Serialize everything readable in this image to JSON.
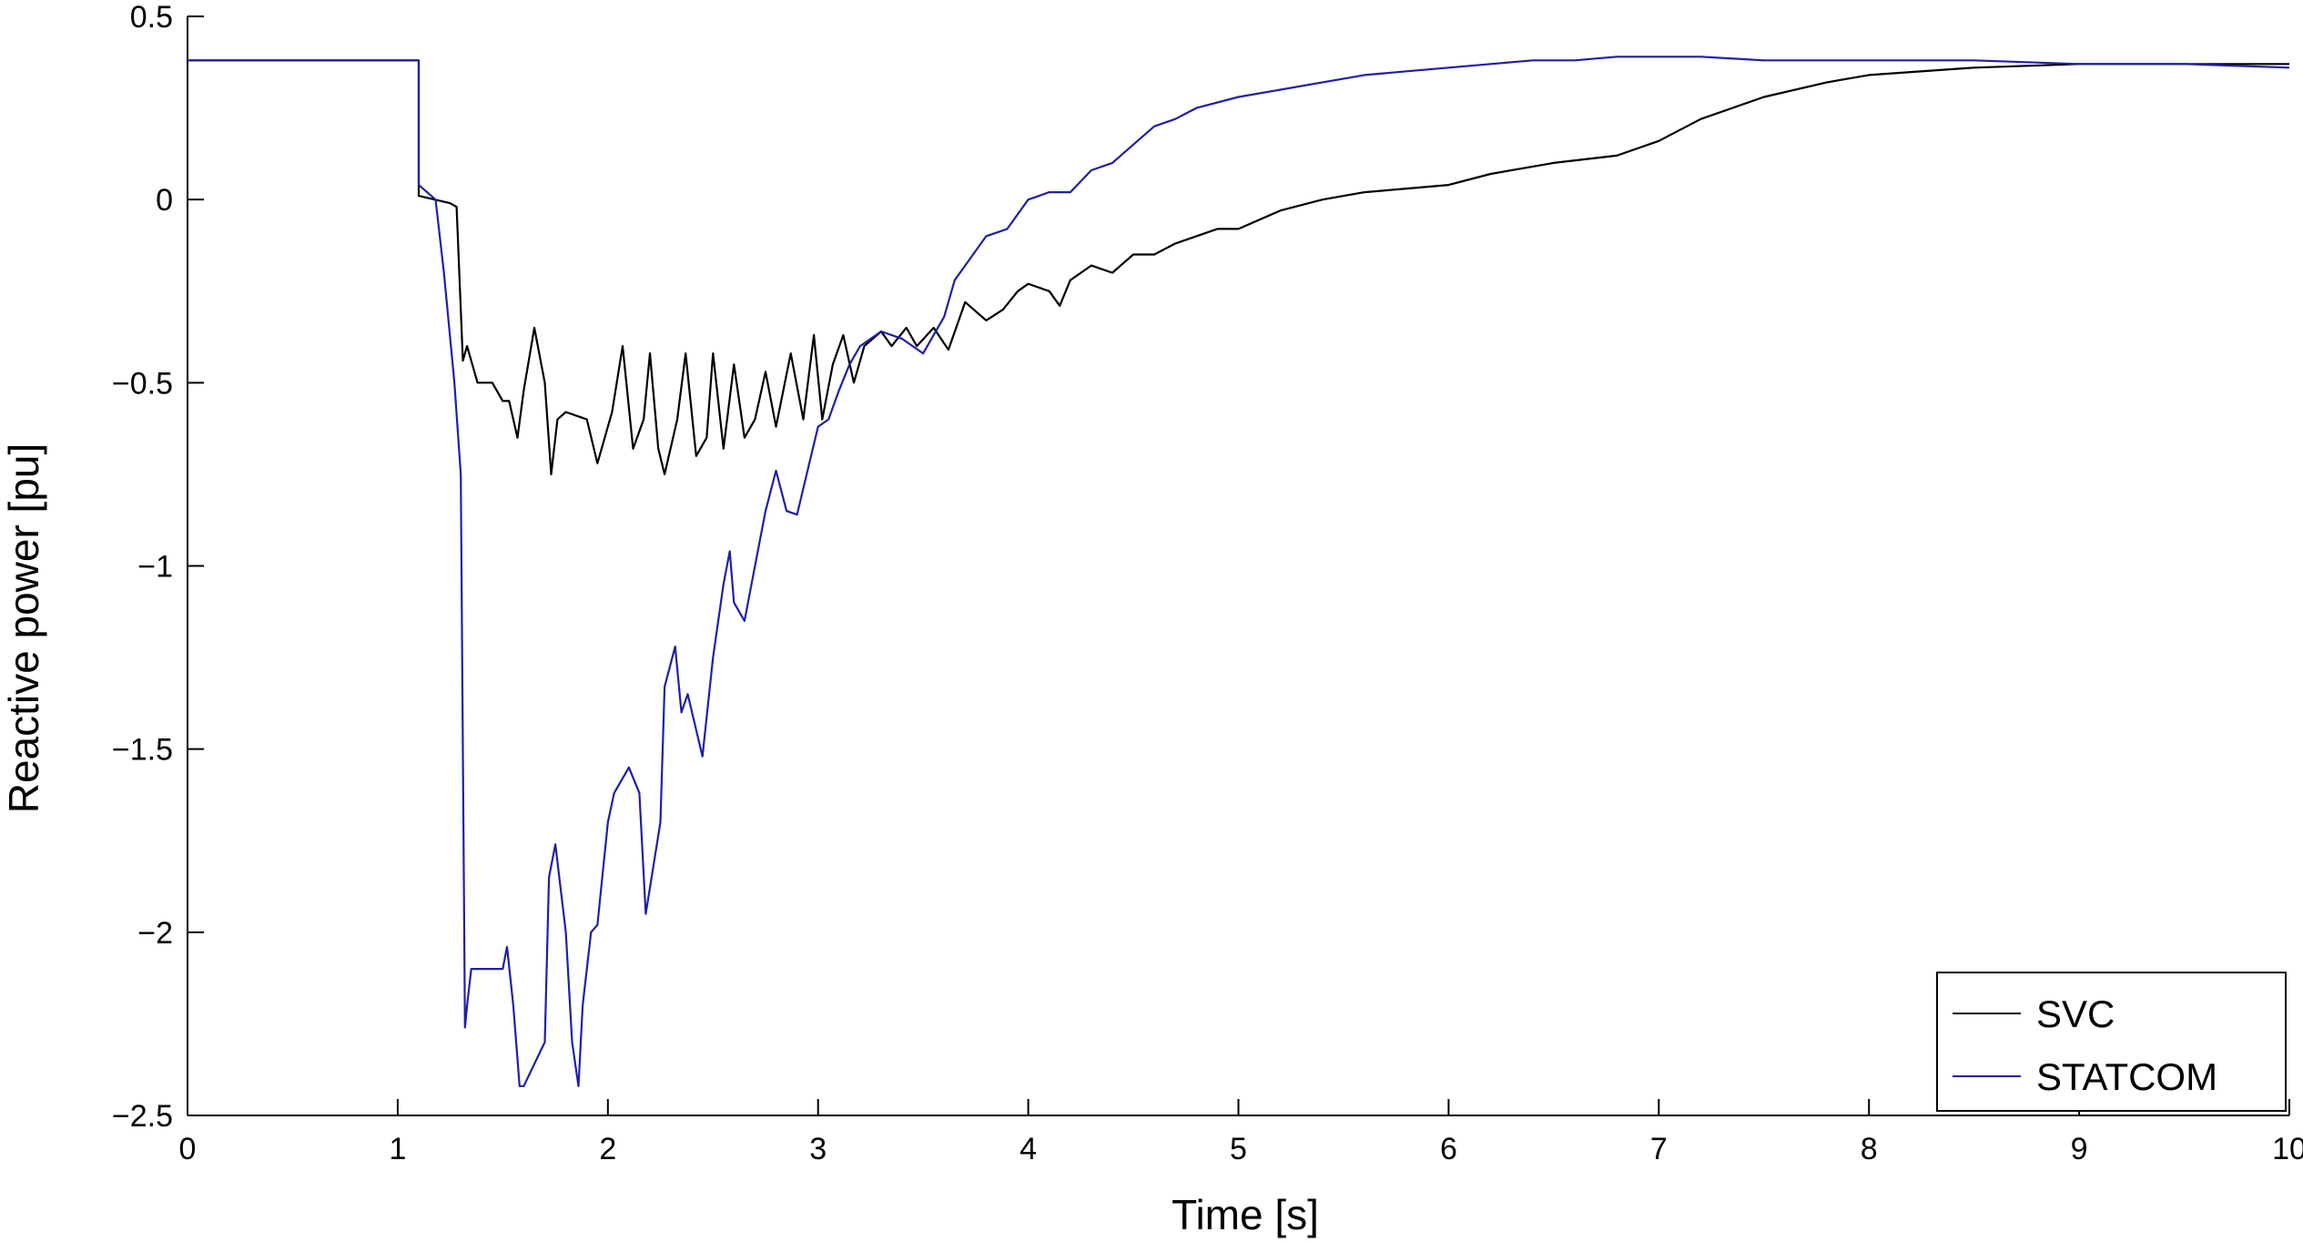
{
  "chart_data": {
    "type": "line",
    "title": "",
    "xlabel": "Time [s]",
    "ylabel": "Reactive power [pu]",
    "xlim": [
      0,
      10
    ],
    "ylim": [
      -2.5,
      0.5
    ],
    "xticks": [
      0,
      1,
      2,
      3,
      4,
      5,
      6,
      7,
      8,
      9,
      10
    ],
    "yticks": [
      -2.5,
      -2,
      -1.5,
      -1,
      -0.5,
      0,
      0.5
    ],
    "xtick_labels": [
      "0",
      "1",
      "2",
      "3",
      "4",
      "5",
      "6",
      "7",
      "8",
      "9",
      "10"
    ],
    "ytick_labels": [
      "−2.5",
      "−2",
      "−1.5",
      "−1",
      "−0.5",
      "0",
      "0.5"
    ],
    "grid": false,
    "legend_position": "bottom-right",
    "series": [
      {
        "name": "SVC",
        "color": "#000000",
        "x": [
          0,
          1.1,
          1.1,
          1.25,
          1.28,
          1.31,
          1.33,
          1.38,
          1.45,
          1.5,
          1.53,
          1.57,
          1.6,
          1.65,
          1.7,
          1.73,
          1.76,
          1.8,
          1.9,
          1.95,
          2.02,
          2.07,
          2.12,
          2.17,
          2.2,
          2.24,
          2.27,
          2.33,
          2.37,
          2.42,
          2.47,
          2.5,
          2.55,
          2.6,
          2.65,
          2.7,
          2.75,
          2.8,
          2.87,
          2.93,
          2.98,
          3.02,
          3.07,
          3.12,
          3.17,
          3.22,
          3.3,
          3.35,
          3.42,
          3.47,
          3.55,
          3.62,
          3.7,
          3.8,
          3.88,
          3.95,
          4.0,
          4.1,
          4.15,
          4.2,
          4.3,
          4.4,
          4.5,
          4.6,
          4.7,
          4.8,
          4.9,
          5.0,
          5.2,
          5.4,
          5.6,
          5.8,
          6.0,
          6.2,
          6.5,
          6.8,
          7.0,
          7.2,
          7.5,
          7.8,
          8.0,
          8.5,
          9.0,
          9.5,
          10.0
        ],
        "y": [
          0.38,
          0.38,
          0.01,
          -0.01,
          -0.02,
          -0.44,
          -0.4,
          -0.5,
          -0.5,
          -0.55,
          -0.55,
          -0.65,
          -0.52,
          -0.35,
          -0.5,
          -0.75,
          -0.6,
          -0.58,
          -0.6,
          -0.72,
          -0.58,
          -0.4,
          -0.68,
          -0.6,
          -0.42,
          -0.68,
          -0.75,
          -0.6,
          -0.42,
          -0.7,
          -0.65,
          -0.42,
          -0.68,
          -0.45,
          -0.65,
          -0.6,
          -0.47,
          -0.62,
          -0.42,
          -0.6,
          -0.37,
          -0.6,
          -0.45,
          -0.37,
          -0.5,
          -0.4,
          -0.36,
          -0.4,
          -0.35,
          -0.4,
          -0.35,
          -0.41,
          -0.28,
          -0.33,
          -0.3,
          -0.25,
          -0.23,
          -0.25,
          -0.29,
          -0.22,
          -0.18,
          -0.2,
          -0.15,
          -0.15,
          -0.12,
          -0.1,
          -0.08,
          -0.08,
          -0.03,
          0.0,
          0.02,
          0.03,
          0.04,
          0.07,
          0.1,
          0.12,
          0.16,
          0.22,
          0.28,
          0.32,
          0.34,
          0.36,
          0.37,
          0.37,
          0.37
        ]
      },
      {
        "name": "STATCOM",
        "color": "#1f1fa8",
        "x": [
          0,
          1.1,
          1.1,
          1.18,
          1.22,
          1.27,
          1.3,
          1.32,
          1.33,
          1.35,
          1.4,
          1.5,
          1.52,
          1.55,
          1.58,
          1.6,
          1.7,
          1.72,
          1.75,
          1.8,
          1.83,
          1.86,
          1.88,
          1.92,
          1.95,
          2.0,
          2.03,
          2.1,
          2.15,
          2.18,
          2.25,
          2.27,
          2.32,
          2.35,
          2.38,
          2.45,
          2.5,
          2.55,
          2.58,
          2.6,
          2.65,
          2.7,
          2.75,
          2.8,
          2.85,
          2.9,
          3.0,
          3.05,
          3.1,
          3.15,
          3.2,
          3.25,
          3.3,
          3.4,
          3.5,
          3.6,
          3.65,
          3.7,
          3.8,
          3.9,
          4.0,
          4.1,
          4.2,
          4.3,
          4.4,
          4.5,
          4.6,
          4.7,
          4.8,
          5.0,
          5.2,
          5.4,
          5.6,
          5.8,
          6.0,
          6.2,
          6.4,
          6.6,
          6.8,
          7.0,
          7.2,
          7.5,
          8.0,
          8.5,
          9.0,
          9.5,
          10.0
        ],
        "y": [
          0.38,
          0.38,
          0.04,
          0.0,
          -0.2,
          -0.5,
          -0.75,
          -2.26,
          -2.2,
          -2.1,
          -2.1,
          -2.1,
          -2.04,
          -2.2,
          -2.42,
          -2.42,
          -2.3,
          -1.85,
          -1.76,
          -2.0,
          -2.3,
          -2.42,
          -2.2,
          -2.0,
          -1.98,
          -1.7,
          -1.62,
          -1.55,
          -1.62,
          -1.95,
          -1.7,
          -1.33,
          -1.22,
          -1.4,
          -1.35,
          -1.52,
          -1.25,
          -1.05,
          -0.96,
          -1.1,
          -1.15,
          -1.0,
          -0.85,
          -0.74,
          -0.85,
          -0.86,
          -0.62,
          -0.6,
          -0.52,
          -0.45,
          -0.4,
          -0.38,
          -0.36,
          -0.38,
          -0.42,
          -0.32,
          -0.22,
          -0.18,
          -0.1,
          -0.08,
          0.0,
          0.02,
          0.02,
          0.08,
          0.1,
          0.15,
          0.2,
          0.22,
          0.25,
          0.28,
          0.3,
          0.32,
          0.34,
          0.35,
          0.36,
          0.37,
          0.38,
          0.38,
          0.39,
          0.39,
          0.39,
          0.38,
          0.38,
          0.38,
          0.37,
          0.37,
          0.36
        ]
      }
    ]
  }
}
